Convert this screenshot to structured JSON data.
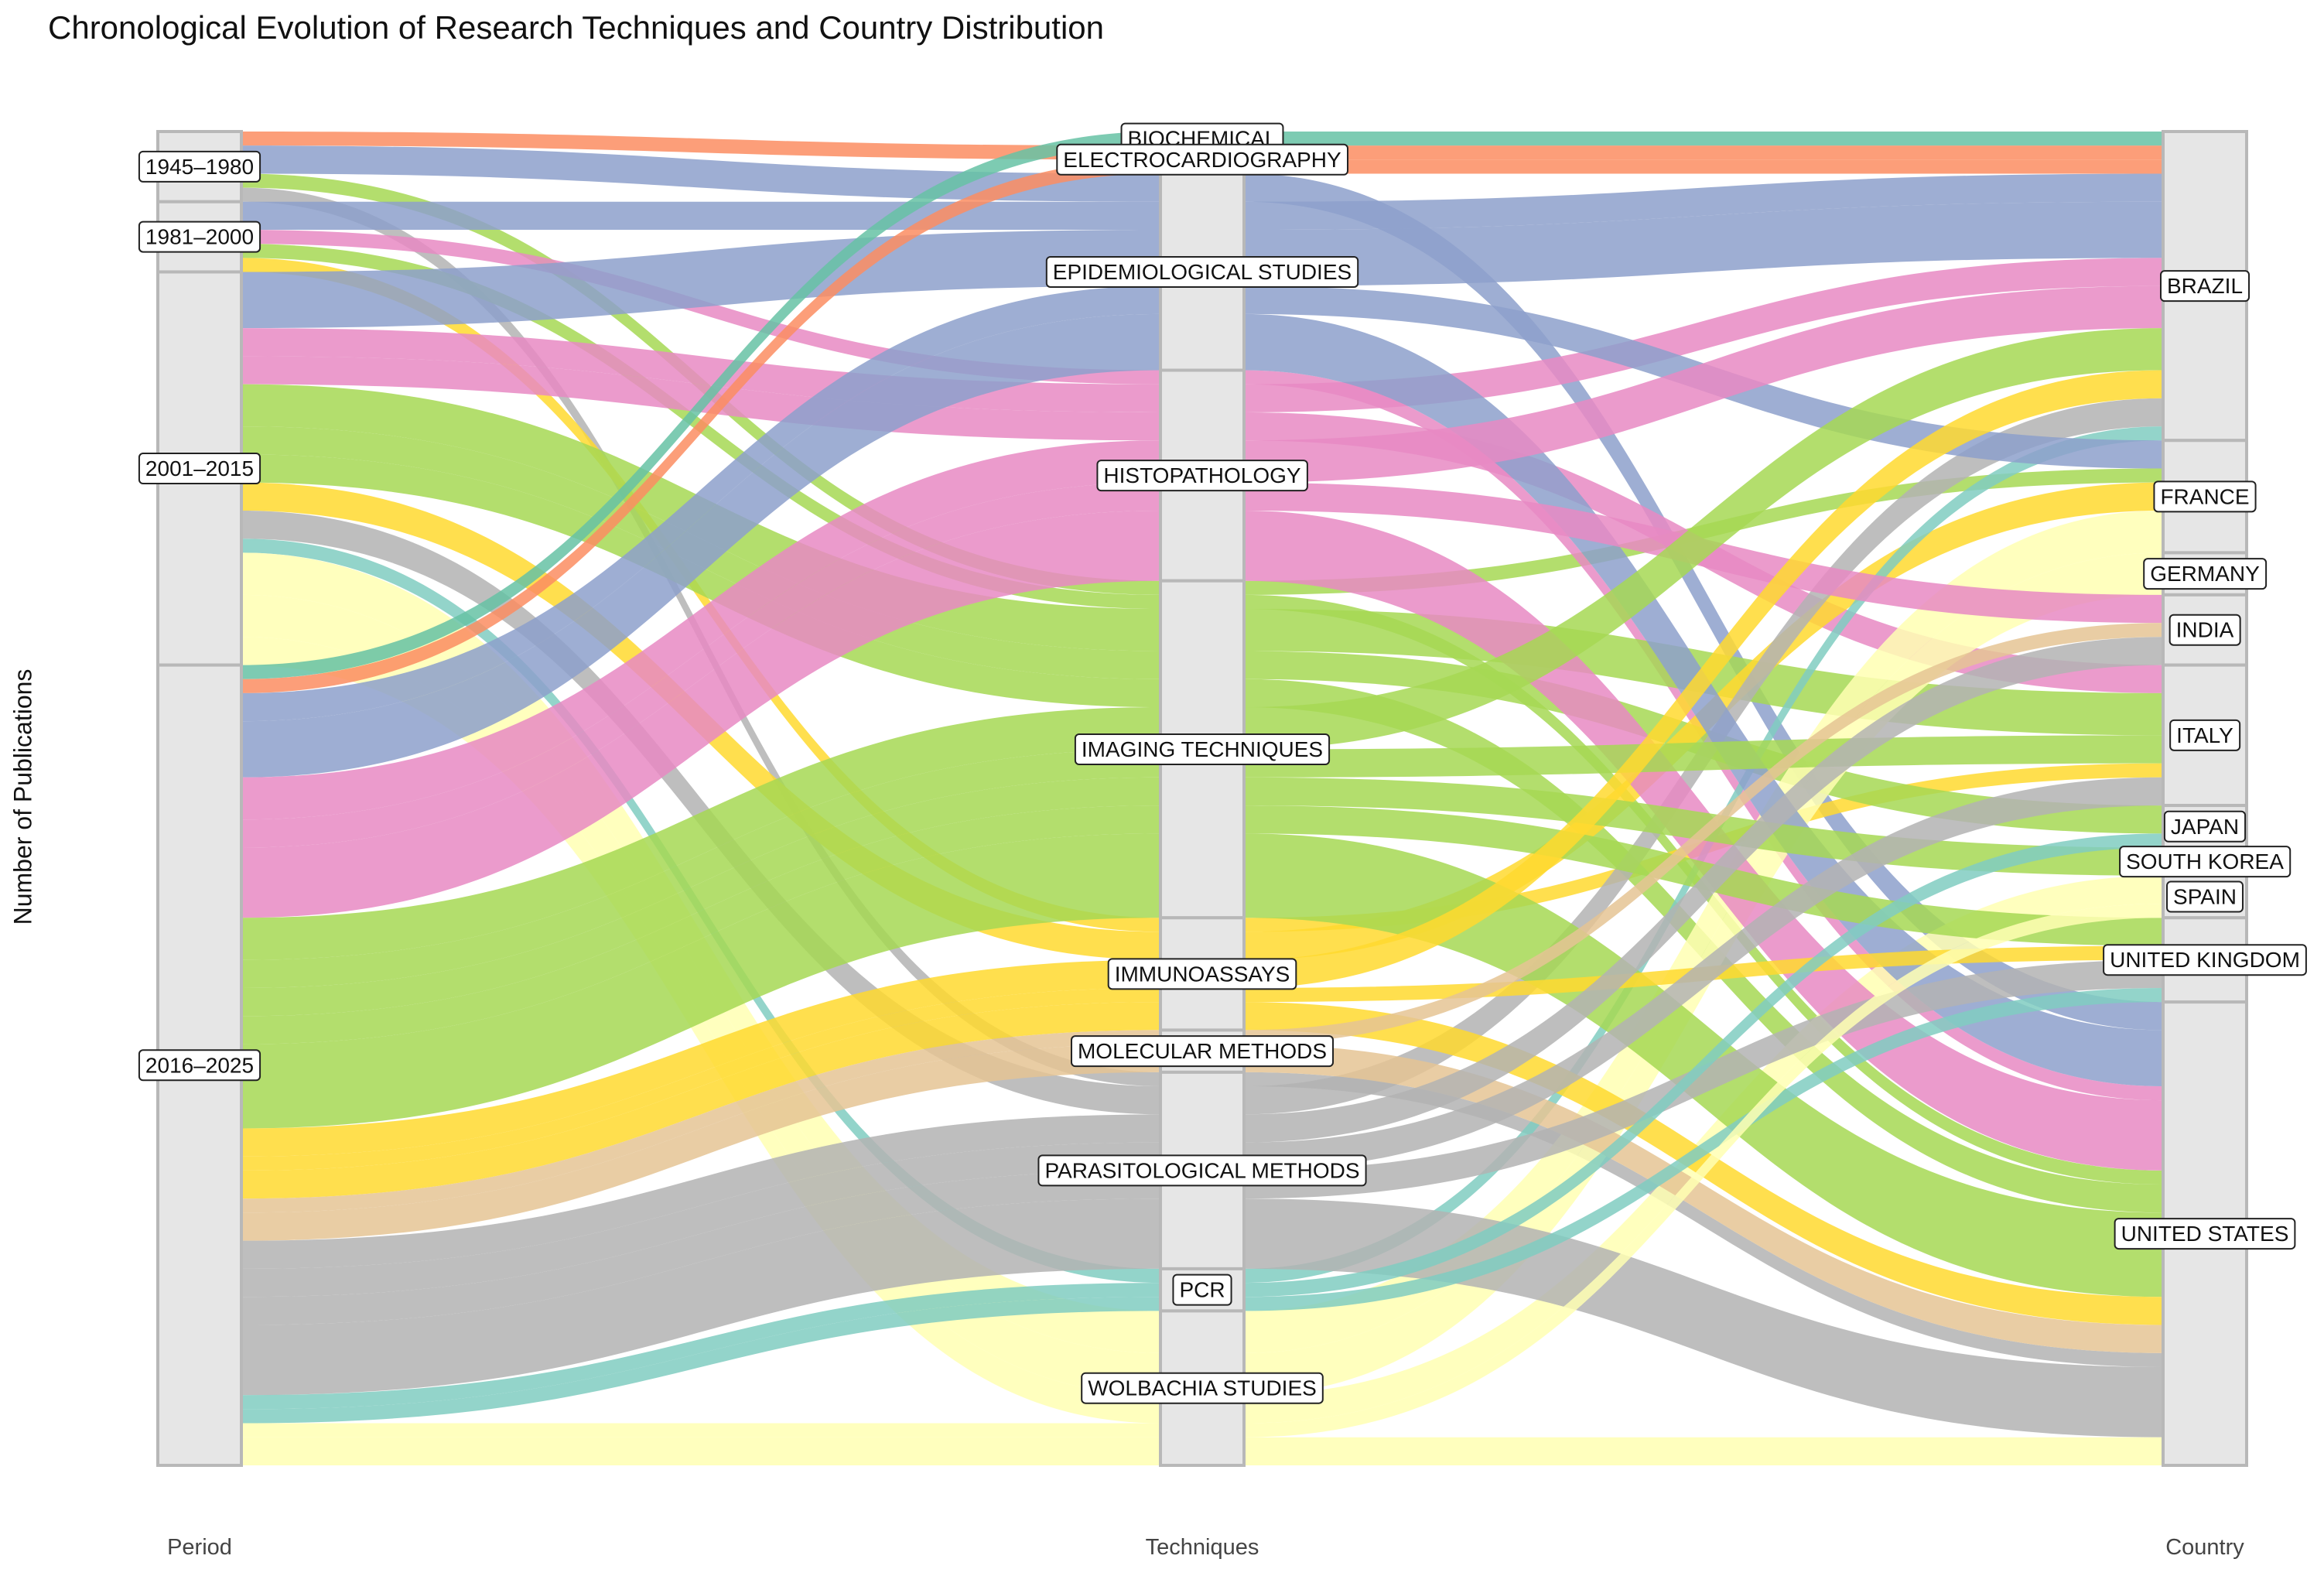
{
  "chart_data": {
    "type": "alluvial",
    "title": "Chronological Evolution of Research Techniques and Country Distribution",
    "ylabel": "Number of Publications",
    "axes": [
      "Period",
      "Techniques",
      "Country"
    ],
    "periods": [
      "1945–1980",
      "1981–2000",
      "2001–2015",
      "2016–2025"
    ],
    "techniques": [
      "BIOCHEMICAL",
      "ELECTROCARDIOGRAPHY",
      "EPIDEMIOLOGICAL STUDIES",
      "HISTOPATHOLOGY",
      "IMAGING TECHNIQUES",
      "IMMUNOASSAYS",
      "MOLECULAR METHODS",
      "PARASITOLOGICAL METHODS",
      "PCR",
      "WOLBACHIA STUDIES"
    ],
    "countries": [
      "BRAZIL",
      "FRANCE",
      "GERMANY",
      "INDIA",
      "ITALY",
      "JAPAN",
      "SOUTH KOREA",
      "SPAIN",
      "UNITED KINGDOM",
      "UNITED STATES"
    ],
    "technique_colors": {
      "BIOCHEMICAL": "#66c2a5",
      "ELECTROCARDIOGRAPHY": "#fc8d62",
      "EPIDEMIOLOGICAL STUDIES": "#8da0cb",
      "HISTOPATHOLOGY": "#e78ac3",
      "IMAGING TECHNIQUES": "#a6d854",
      "IMMUNOASSAYS": "#ffd92f",
      "MOLECULAR METHODS": "#e5c494",
      "PARASITOLOGICAL METHODS": "#b3b3b3",
      "PCR": "#80cdc1",
      "WOLBACHIA STUDIES": "#ffffb3"
    },
    "flows": [
      {
        "period": "1945–1980",
        "technique": "ELECTROCARDIOGRAPHY",
        "country": "BRAZIL",
        "value": 1
      },
      {
        "period": "1945–1980",
        "technique": "EPIDEMIOLOGICAL STUDIES",
        "country": "UNITED STATES",
        "value": 2
      },
      {
        "period": "1945–1980",
        "technique": "IMAGING TECHNIQUES",
        "country": "FRANCE",
        "value": 1
      },
      {
        "period": "1945–1980",
        "technique": "PARASITOLOGICAL METHODS",
        "country": "UNITED STATES",
        "value": 1
      },
      {
        "period": "1981–2000",
        "technique": "EPIDEMIOLOGICAL STUDIES",
        "country": "BRAZIL",
        "value": 2
      },
      {
        "period": "1981–2000",
        "technique": "HISTOPATHOLOGY",
        "country": "UNITED STATES",
        "value": 1
      },
      {
        "period": "1981–2000",
        "technique": "IMAGING TECHNIQUES",
        "country": "UNITED STATES",
        "value": 1
      },
      {
        "period": "1981–2000",
        "technique": "IMMUNOASSAYS",
        "country": "ITALY",
        "value": 1
      },
      {
        "period": "2001–2015",
        "technique": "EPIDEMIOLOGICAL STUDIES",
        "country": "BRAZIL",
        "value": 4
      },
      {
        "period": "2001–2015",
        "technique": "HISTOPATHOLOGY",
        "country": "BRAZIL",
        "value": 2
      },
      {
        "period": "2001–2015",
        "technique": "HISTOPATHOLOGY",
        "country": "ITALY",
        "value": 2
      },
      {
        "period": "2001–2015",
        "technique": "IMAGING TECHNIQUES",
        "country": "ITALY",
        "value": 3
      },
      {
        "period": "2001–2015",
        "technique": "IMAGING TECHNIQUES",
        "country": "JAPAN",
        "value": 2
      },
      {
        "period": "2001–2015",
        "technique": "IMAGING TECHNIQUES",
        "country": "UNITED STATES",
        "value": 2
      },
      {
        "period": "2001–2015",
        "technique": "IMMUNOASSAYS",
        "country": "FRANCE",
        "value": 2
      },
      {
        "period": "2001–2015",
        "technique": "PARASITOLOGICAL METHODS",
        "country": "BRAZIL",
        "value": 2
      },
      {
        "period": "2001–2015",
        "technique": "PCR",
        "country": "BRAZIL",
        "value": 1
      },
      {
        "period": "2001–2015",
        "technique": "WOLBACHIA STUDIES",
        "country": "FRANCE",
        "value": 3
      },
      {
        "period": "2001–2015",
        "technique": "WOLBACHIA STUDIES",
        "country": "GERMANY",
        "value": 3
      },
      {
        "period": "2001–2015",
        "technique": "WOLBACHIA STUDIES",
        "country": "SPAIN",
        "value": 2
      },
      {
        "period": "2016–2025",
        "technique": "BIOCHEMICAL",
        "country": "BRAZIL",
        "value": 1
      },
      {
        "period": "2016–2025",
        "technique": "ELECTROCARDIOGRAPHY",
        "country": "BRAZIL",
        "value": 1
      },
      {
        "period": "2016–2025",
        "technique": "EPIDEMIOLOGICAL STUDIES",
        "country": "FRANCE",
        "value": 2
      },
      {
        "period": "2016–2025",
        "technique": "EPIDEMIOLOGICAL STUDIES",
        "country": "UNITED STATES",
        "value": 4
      },
      {
        "period": "2016–2025",
        "technique": "HISTOPATHOLOGY",
        "country": "BRAZIL",
        "value": 3
      },
      {
        "period": "2016–2025",
        "technique": "HISTOPATHOLOGY",
        "country": "INDIA",
        "value": 2
      },
      {
        "period": "2016–2025",
        "technique": "HISTOPATHOLOGY",
        "country": "UNITED STATES",
        "value": 5
      },
      {
        "period": "2016–2025",
        "technique": "IMAGING TECHNIQUES",
        "country": "BRAZIL",
        "value": 3
      },
      {
        "period": "2016–2025",
        "technique": "IMAGING TECHNIQUES",
        "country": "ITALY",
        "value": 2
      },
      {
        "period": "2016–2025",
        "technique": "IMAGING TECHNIQUES",
        "country": "SOUTH KOREA",
        "value": 2
      },
      {
        "period": "2016–2025",
        "technique": "IMAGING TECHNIQUES",
        "country": "UNITED KINGDOM",
        "value": 2
      },
      {
        "period": "2016–2025",
        "technique": "IMAGING TECHNIQUES",
        "country": "UNITED STATES",
        "value": 6
      },
      {
        "period": "2016–2025",
        "technique": "IMMUNOASSAYS",
        "country": "BRAZIL",
        "value": 2
      },
      {
        "period": "2016–2025",
        "technique": "IMMUNOASSAYS",
        "country": "UNITED KINGDOM",
        "value": 1
      },
      {
        "period": "2016–2025",
        "technique": "IMMUNOASSAYS",
        "country": "UNITED STATES",
        "value": 2
      },
      {
        "period": "2016–2025",
        "technique": "MOLECULAR METHODS",
        "country": "UNITED STATES",
        "value": 2
      },
      {
        "period": "2016–2025",
        "technique": "MOLECULAR METHODS",
        "country": "INDIA",
        "value": 1
      },
      {
        "period": "2016–2025",
        "technique": "PARASITOLOGICAL METHODS",
        "country": "INDIA",
        "value": 2
      },
      {
        "period": "2016–2025",
        "technique": "PARASITOLOGICAL METHODS",
        "country": "ITALY",
        "value": 2
      },
      {
        "period": "2016–2025",
        "technique": "PARASITOLOGICAL METHODS",
        "country": "UNITED KINGDOM",
        "value": 2
      },
      {
        "period": "2016–2025",
        "technique": "PARASITOLOGICAL METHODS",
        "country": "UNITED STATES",
        "value": 5
      },
      {
        "period": "2016–2025",
        "technique": "PCR",
        "country": "JAPAN",
        "value": 1
      },
      {
        "period": "2016–2025",
        "technique": "PCR",
        "country": "UNITED KINGDOM",
        "value": 1
      },
      {
        "period": "2016–2025",
        "technique": "WOLBACHIA STUDIES",
        "country": "SPAIN",
        "value": 1
      },
      {
        "period": "2016–2025",
        "technique": "WOLBACHIA STUDIES",
        "country": "UNITED STATES",
        "value": 2
      }
    ]
  }
}
